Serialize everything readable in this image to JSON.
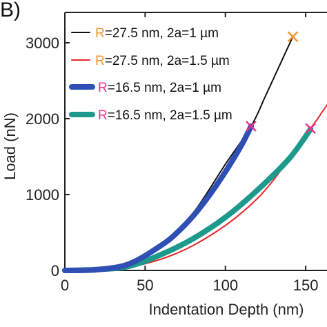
{
  "panel_label": "B)",
  "chart_data": {
    "type": "line",
    "title": "",
    "xlabel": "Indentation Depth (nm)",
    "ylabel": "Load (nN)",
    "xlim": [
      0,
      165
    ],
    "ylim": [
      0,
      3400
    ],
    "xticks": [
      0,
      50,
      100,
      150
    ],
    "yticks": [
      0,
      1000,
      2000,
      3000
    ],
    "grid": false,
    "legend_position": "top-left",
    "series": [
      {
        "name_prefix": "R",
        "name_rest": "=27.5 nm, 2a=1 µm",
        "prefix_color": "#f2962a",
        "color": "#111111",
        "weight": "thin",
        "x": [
          0,
          20,
          40,
          60,
          80,
          100,
          116,
          125,
          135,
          142
        ],
        "y": [
          0,
          10,
          90,
          320,
          760,
          1400,
          1900,
          2300,
          2760,
          3080
        ]
      },
      {
        "name_prefix": "R",
        "name_rest": "=27.5 nm, 2a=1.5 µm",
        "prefix_color": "#f2962a",
        "color": "#e8262a",
        "weight": "thin",
        "x": [
          0,
          40,
          80,
          120,
          153,
          160,
          165
        ],
        "y": [
          0,
          40,
          330,
          950,
          1870,
          2080,
          2230
        ]
      },
      {
        "name_prefix": "R",
        "name_rest": "=16.5 nm, 2a=1 µm",
        "prefix_color": "#e8358a",
        "color": "#2f4fb5",
        "weight": "thick",
        "x": [
          0,
          20,
          40,
          60,
          70,
          80,
          90,
          100,
          110,
          116
        ],
        "y": [
          0,
          10,
          85,
          330,
          500,
          720,
          990,
          1300,
          1650,
          1900
        ]
      },
      {
        "name_prefix": "R",
        "name_rest": "=16.5 nm, 2a=1.5 µm",
        "prefix_color": "#e8358a",
        "color": "#1e9a8c",
        "weight": "thick",
        "x": [
          0,
          20,
          40,
          60,
          80,
          100,
          120,
          140,
          153
        ],
        "y": [
          0,
          12,
          55,
          210,
          420,
          700,
          1060,
          1480,
          1860
        ]
      }
    ],
    "markers": [
      {
        "x": 142,
        "y": 3080,
        "symbol": "x",
        "color": "#f2962a"
      },
      {
        "x": 116,
        "y": 1900,
        "symbol": "x",
        "color": "#e8358a"
      },
      {
        "x": 153,
        "y": 1870,
        "symbol": "x",
        "color": "#e8358a"
      }
    ]
  }
}
